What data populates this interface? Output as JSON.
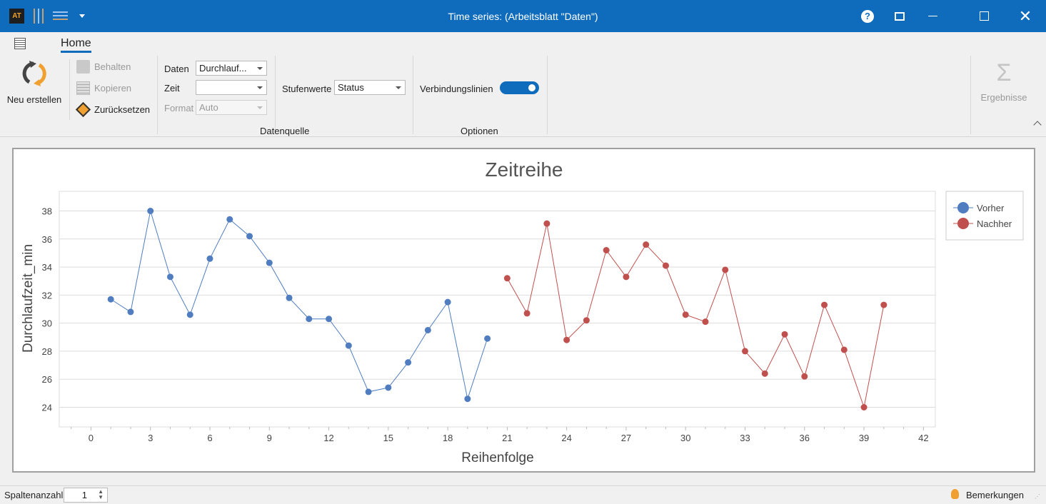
{
  "titlebar": {
    "title": "Time series:  (Arbeitsblatt \"Daten\")"
  },
  "ribbon": {
    "tab": "Home",
    "new_label": "Neu erstellen",
    "keep_label": "Behalten",
    "copy_label": "Kopieren",
    "reset_label": "Zurücksetzen",
    "data_label": "Daten",
    "data_value": "Durchlauf...",
    "time_label": "Zeit",
    "time_value": "",
    "format_label": "Format",
    "format_value": "Auto",
    "group_datasource": "Datenquelle",
    "levels_label": "Stufenwerte",
    "levels_value": "Status",
    "lines_label": "Verbindungslinien",
    "lines_on": true,
    "group_options": "Optionen",
    "results_label": "Ergebnisse"
  },
  "chart_data": {
    "type": "line",
    "title": "Zeitreihe",
    "xlabel": "Reihenfolge",
    "ylabel": "Durchlaufzeit_min",
    "xlim": [
      -1.6,
      42.6
    ],
    "ylim": [
      22.6,
      39.4
    ],
    "xticks": [
      0,
      3,
      6,
      9,
      12,
      15,
      18,
      21,
      24,
      27,
      30,
      33,
      36,
      39,
      42
    ],
    "yticks": [
      24,
      26,
      28,
      30,
      32,
      34,
      36,
      38
    ],
    "grid": true,
    "legend": "right",
    "series": [
      {
        "name": "Vorher",
        "color": "#4f7dc0",
        "x": [
          1,
          2,
          3,
          4,
          5,
          6,
          7,
          8,
          9,
          10,
          11,
          12,
          13,
          14,
          15,
          16,
          17,
          18,
          19,
          20
        ],
        "y": [
          31.7,
          30.8,
          38.0,
          33.3,
          30.6,
          34.6,
          37.4,
          36.2,
          34.3,
          31.8,
          30.3,
          30.3,
          28.4,
          25.1,
          25.4,
          27.2,
          29.5,
          31.5,
          24.6,
          28.9
        ]
      },
      {
        "name": "Nachher",
        "color": "#c0504d",
        "x": [
          21,
          22,
          23,
          24,
          25,
          26,
          27,
          28,
          29,
          30,
          31,
          32,
          33,
          34,
          35,
          36,
          37,
          38,
          39,
          40
        ],
        "y": [
          33.2,
          30.7,
          37.1,
          28.8,
          30.2,
          35.2,
          33.3,
          35.6,
          34.1,
          30.6,
          30.1,
          33.8,
          28.0,
          26.4,
          29.2,
          26.2,
          31.3,
          28.1,
          24.0,
          31.3
        ]
      }
    ]
  },
  "status": {
    "columns_label": "Spaltenanzahl",
    "columns_value": "1",
    "remarks_label": "Bemerkungen"
  }
}
